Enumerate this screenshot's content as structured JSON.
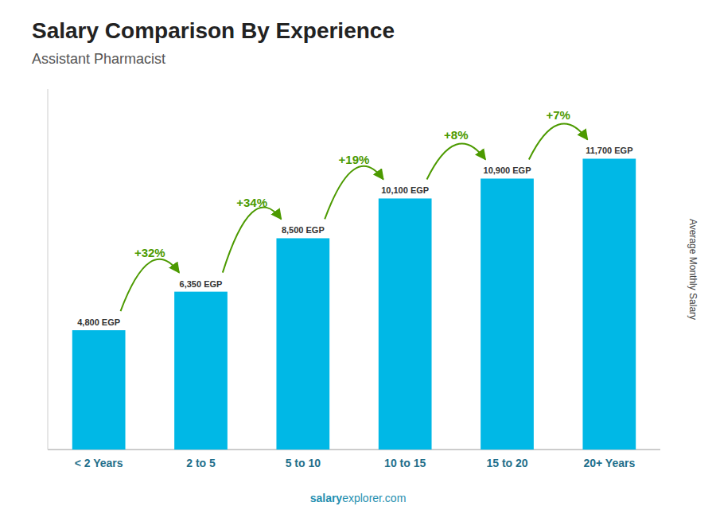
{
  "chart_data": {
    "type": "bar",
    "title": "Salary Comparison By Experience",
    "subtitle": "Assistant Pharmacist",
    "ylabel": "Average Monthly Salary",
    "watermark": [
      "salary",
      "explorer.com"
    ],
    "categories": [
      "< 2 Years",
      "2 to 5",
      "5 to 10",
      "10 to 15",
      "15 to 20",
      "20+ Years"
    ],
    "values": [
      4800,
      6350,
      8500,
      10100,
      10900,
      11700
    ],
    "value_labels": [
      "4,800 EGP",
      "6,350 EGP",
      "8,500 EGP",
      "10,100 EGP",
      "10,900 EGP",
      "11,700 EGP"
    ],
    "pct_changes": [
      null,
      "+32%",
      "+34%",
      "+19%",
      "+8%",
      "+7%"
    ],
    "data_labels": true,
    "color": "#00b8e6",
    "ylim": [
      0,
      14500
    ],
    "tick_labels": "x",
    "grid": false
  }
}
